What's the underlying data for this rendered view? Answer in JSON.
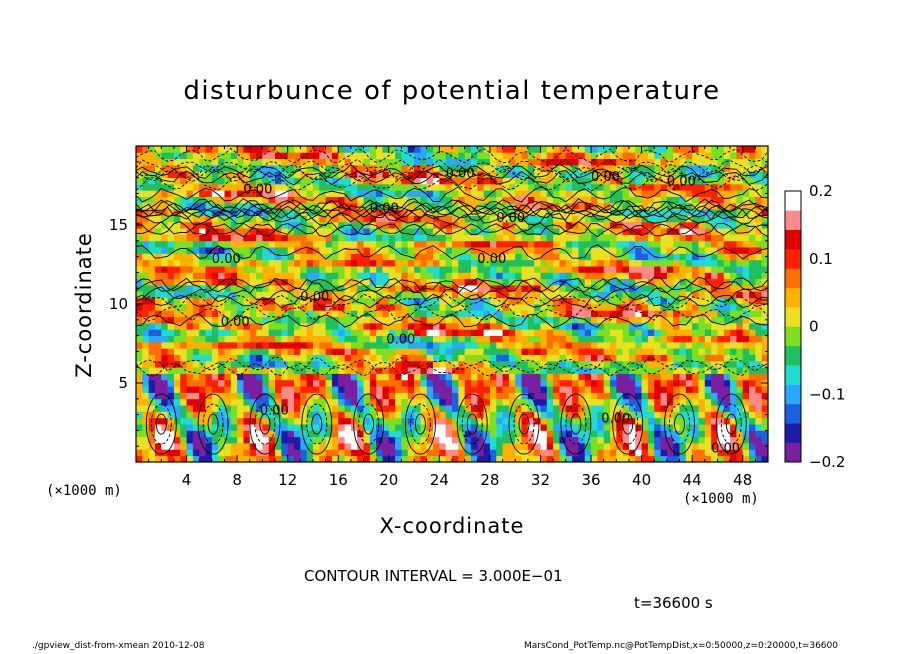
{
  "chart_data": {
    "type": "heatmap",
    "title": "disturbunce of potential temperature",
    "xlabel": "X-coordinate",
    "ylabel": "Z-coordinate",
    "x_unit": "(×1000 m)",
    "xlim": [
      0,
      50
    ],
    "ylim": [
      0,
      20
    ],
    "x_ticks": [
      4,
      8,
      12,
      16,
      20,
      24,
      28,
      32,
      36,
      40,
      44,
      48
    ],
    "y_ticks": [
      5,
      10,
      15
    ],
    "colorbar": {
      "min": -0.2,
      "max": 0.2,
      "tick_labels": [
        "0.2",
        "0.1",
        "0",
        "−0.1",
        "−0.2"
      ],
      "tick_values": [
        0.2,
        0.1,
        0,
        -0.1,
        -0.2
      ],
      "colors": [
        "#7a1fa0",
        "#1c1ca8",
        "#1c5fe0",
        "#28a8ff",
        "#20dcd0",
        "#20c060",
        "#7ce020",
        "#e8e020",
        "#ffb000",
        "#ff7000",
        "#ff2000",
        "#e00000",
        "#ff8a8a",
        "#ffffff"
      ]
    },
    "contour_labels": [
      "0.00"
    ],
    "grid": false
  },
  "annotations": {
    "contour_interval": "CONTOUR INTERVAL = 3.000E−01",
    "time": "t=36600 s"
  },
  "footer": {
    "left": "./gpview_dist-from-xmean   2010-12-08",
    "right": "MarsCond_PotTemp.nc@PotTempDist,x=0:50000,z=0:20000,t=36600"
  }
}
